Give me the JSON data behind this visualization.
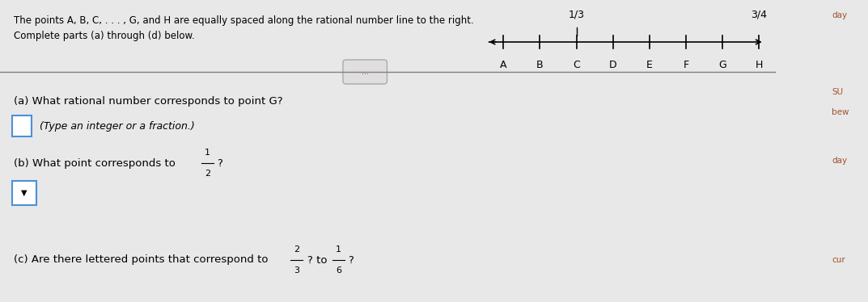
{
  "bg_color": "#e8e8e8",
  "white_panel_color": "#f0eeee",
  "right_panel_color": "#c8c8c8",
  "title_text": "The points A, B, C, . . . , G, and H are equally spaced along the rational number line to the right.\nComplete parts (a) through (d) below.",
  "number_line": {
    "points": [
      "A",
      "B",
      "C",
      "D",
      "E",
      "F",
      "G",
      "H"
    ],
    "label_1_3": "1/3",
    "label_3_4": "3/4",
    "label_1_3_index": 2,
    "label_3_4_index": 7
  },
  "divider_label": "...",
  "part_a_text": "(a) What rational number corresponds to point G?",
  "part_a_sub": "(Type an integer or a fraction.)",
  "part_b_text_before": "(b) What point corresponds to ",
  "part_b_fraction_num": "1",
  "part_b_fraction_den": "2",
  "part_b_text_after": "?",
  "part_c_text_before": "(c) Are there lettered points that correspond to ",
  "part_c_frac1_num": "2",
  "part_c_frac1_den": "3",
  "part_c_text_mid": "? to ",
  "part_c_frac2_num": "1",
  "part_c_frac2_den": "6",
  "part_c_text_end": "?",
  "input_box_color": "#ffffff",
  "input_box_border": "#4a90d9",
  "right_bar_color": "#b0522a",
  "right_text_color": "#a0522d",
  "right_texts": [
    "day",
    "SU",
    "bew",
    "day",
    "cur"
  ]
}
